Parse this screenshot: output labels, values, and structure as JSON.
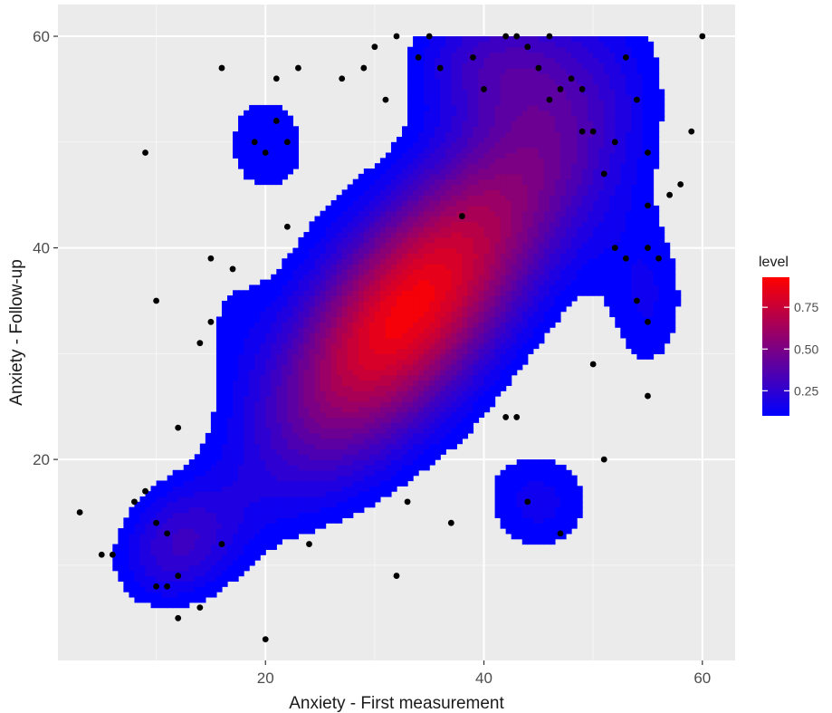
{
  "chart_data": {
    "type": "density-contour-scatter",
    "xlabel": "Anxiety - First measurement",
    "ylabel": "Anxiety - Follow-up",
    "xlim": [
      1,
      63
    ],
    "ylim": [
      1,
      63
    ],
    "x_ticks": [
      20,
      40,
      60
    ],
    "y_ticks": [
      20,
      40,
      60
    ],
    "grid": true,
    "background": "#ebebeb",
    "legend": {
      "title": "level",
      "position": "right",
      "ticks": [
        0.25,
        0.5,
        0.75
      ],
      "tick_labels": [
        "0.25",
        "0.50",
        "0.75"
      ],
      "range": [
        0.1,
        0.93
      ],
      "low_color": "#0000ff",
      "high_color": "#ff0000"
    },
    "density": {
      "max_level": 0.93,
      "bandwidth": [
        5.5,
        6
      ],
      "components": [
        {
          "x": 33,
          "y": 34,
          "sx": 8.5,
          "sy": 10,
          "rho": 0.65,
          "w": 1.0
        },
        {
          "x": 12,
          "y": 12,
          "sx": 4,
          "sy": 4,
          "rho": 0.2,
          "w": 0.3
        },
        {
          "x": 47,
          "y": 52,
          "sx": 6,
          "sy": 8,
          "rho": 0.2,
          "w": 0.28
        },
        {
          "x": 20,
          "y": 50,
          "sx": 4,
          "sy": 5,
          "rho": 0.0,
          "w": 0.14
        },
        {
          "x": 40,
          "y": 58,
          "sx": 5,
          "sy": 4,
          "rho": 0.0,
          "w": 0.25
        },
        {
          "x": 45,
          "y": 16,
          "sx": 4,
          "sy": 4,
          "rho": 0.0,
          "w": 0.18
        },
        {
          "x": 55,
          "y": 35,
          "sx": 3,
          "sy": 6,
          "rho": 0.0,
          "w": 0.16
        },
        {
          "x": 16,
          "y": 35,
          "sx": 3,
          "sy": 5,
          "rho": 0.0,
          "w": 0.08
        }
      ]
    },
    "points": [
      [
        3,
        15
      ],
      [
        5,
        11
      ],
      [
        6,
        11
      ],
      [
        8,
        16
      ],
      [
        9,
        17
      ],
      [
        10,
        14
      ],
      [
        10,
        8
      ],
      [
        11,
        13
      ],
      [
        11,
        8
      ],
      [
        12,
        5
      ],
      [
        12,
        9
      ],
      [
        12,
        23
      ],
      [
        14,
        6
      ],
      [
        14,
        31
      ],
      [
        15,
        33
      ],
      [
        15,
        39
      ],
      [
        16,
        57
      ],
      [
        16,
        12
      ],
      [
        17,
        38
      ],
      [
        19,
        50
      ],
      [
        20,
        3
      ],
      [
        20,
        49
      ],
      [
        21,
        52
      ],
      [
        21,
        56
      ],
      [
        22,
        50
      ],
      [
        22,
        42
      ],
      [
        23,
        57
      ],
      [
        24,
        12
      ],
      [
        27,
        56
      ],
      [
        29,
        57
      ],
      [
        30,
        59
      ],
      [
        31,
        54
      ],
      [
        32,
        9
      ],
      [
        32,
        60
      ],
      [
        33,
        16
      ],
      [
        34,
        58
      ],
      [
        35,
        60
      ],
      [
        36,
        57
      ],
      [
        37,
        14
      ],
      [
        38,
        43
      ],
      [
        39,
        58
      ],
      [
        40,
        55
      ],
      [
        42,
        24
      ],
      [
        42,
        60
      ],
      [
        43,
        60
      ],
      [
        43,
        24
      ],
      [
        44,
        16
      ],
      [
        44,
        59
      ],
      [
        45,
        57
      ],
      [
        46,
        60
      ],
      [
        46,
        54
      ],
      [
        47,
        13
      ],
      [
        47,
        55
      ],
      [
        48,
        56
      ],
      [
        49,
        55
      ],
      [
        49,
        51
      ],
      [
        50,
        29
      ],
      [
        50,
        51
      ],
      [
        51,
        20
      ],
      [
        51,
        47
      ],
      [
        52,
        50
      ],
      [
        52,
        40
      ],
      [
        53,
        58
      ],
      [
        53,
        39
      ],
      [
        54,
        54
      ],
      [
        54,
        35
      ],
      [
        55,
        49
      ],
      [
        55,
        44
      ],
      [
        55,
        40
      ],
      [
        55,
        33
      ],
      [
        55,
        26
      ],
      [
        56,
        39
      ],
      [
        57,
        45
      ],
      [
        58,
        46
      ],
      [
        59,
        51
      ],
      [
        60,
        60
      ],
      [
        9,
        49
      ],
      [
        10,
        35
      ]
    ]
  }
}
